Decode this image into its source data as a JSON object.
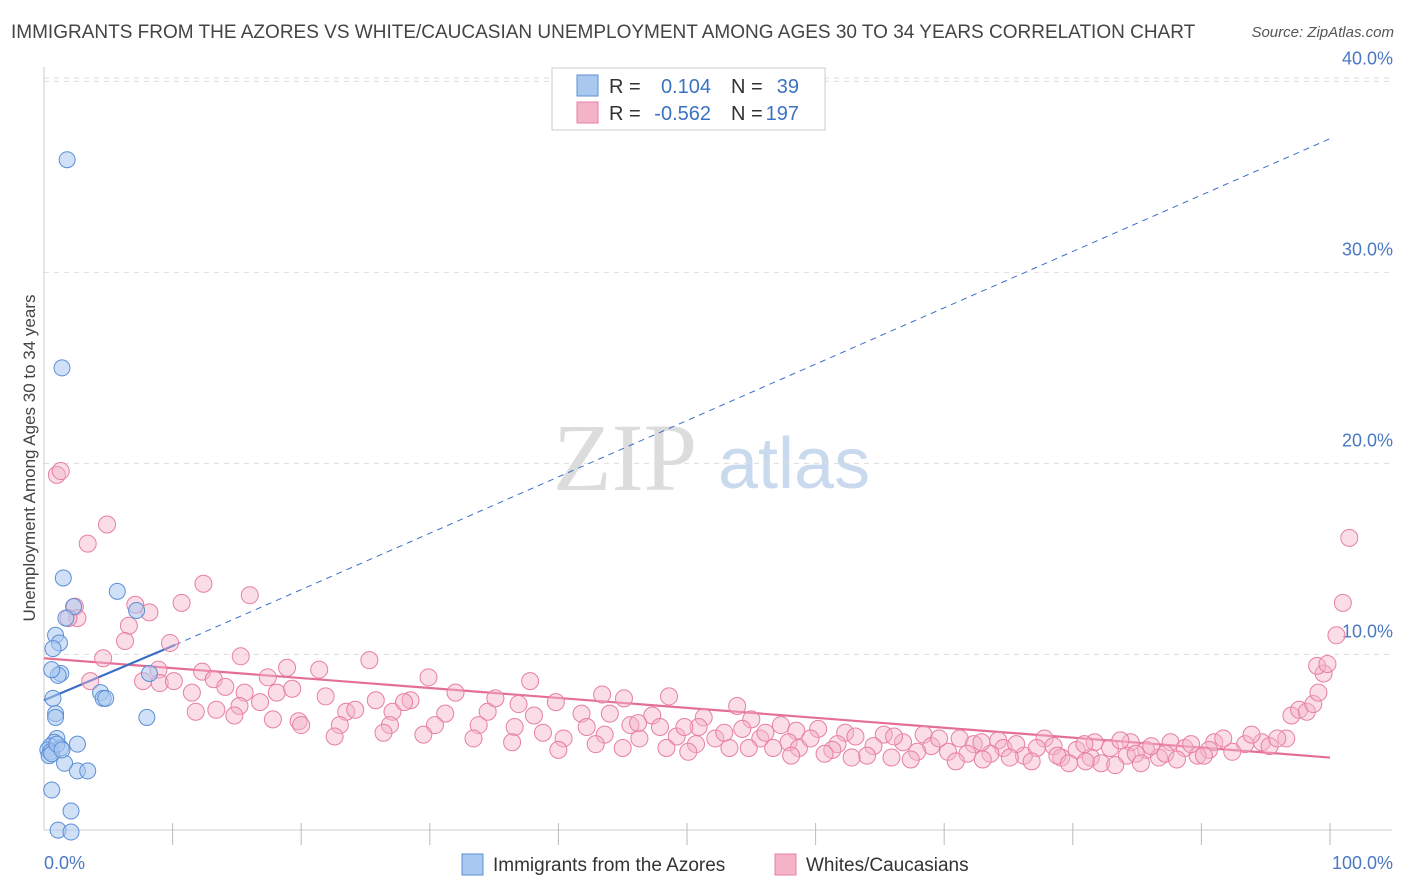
{
  "header": {
    "title": "IMMIGRANTS FROM THE AZORES VS WHITE/CAUCASIAN UNEMPLOYMENT AMONG AGES 30 TO 34 YEARS CORRELATION CHART",
    "source": "Source: ZipAtlas.com"
  },
  "watermark": {
    "zip": "ZIP",
    "atlas": "atlas"
  },
  "legend": {
    "rows": [
      {
        "r_label": "R =",
        "r_value": "0.104",
        "n_label": "N =",
        "n_value": "39",
        "color": "#a9c8f0"
      },
      {
        "r_label": "R =",
        "r_value": "-0.562",
        "n_label": "N =",
        "n_value": "197",
        "color": "#f5b3c8"
      }
    ]
  },
  "bottom_legend": [
    {
      "label": "Immigrants from the Azores",
      "color": "#a9c8f0"
    },
    {
      "label": "Whites/Caucasians",
      "color": "#f5b3c8"
    }
  ],
  "colors": {
    "blue_fill": "#a9c8f0",
    "blue_stroke": "#5b8fd6",
    "blue_line": "#3a6fc7",
    "pink_fill": "#f5b3c8",
    "pink_stroke": "#e87fa2",
    "pink_line": "#e46f96",
    "axis_text": "#4a78c2",
    "grid": "#dddddd"
  },
  "chart_data": {
    "type": "scatter",
    "title": "IMMIGRANTS FROM THE AZORES VS WHITE/CAUCASIAN UNEMPLOYMENT AMONG AGES 30 TO 34 YEARS CORRELATION CHART",
    "xlabel": "",
    "ylabel": "Unemployment Among Ages 30 to 34 years",
    "xlim": [
      0,
      100
    ],
    "ylim": [
      -0.5,
      42
    ],
    "x_tick_labels": [
      "0.0%",
      "100.0%"
    ],
    "y_ticks": [
      10,
      20,
      30,
      40
    ],
    "y_tick_labels": [
      "10.0%",
      "20.0%",
      "30.0%",
      "40.0%"
    ],
    "series": [
      {
        "name": "Immigrants from the Azores",
        "r": 0.104,
        "n": 39,
        "trend": {
          "x": [
            0,
            10.2
          ],
          "y": [
            7.6,
            10.5
          ]
        },
        "trend_dashed": {
          "x": [
            10.2,
            100
          ],
          "y": [
            10.5,
            37.0
          ]
        },
        "points": [
          [
            1.8,
            35.9
          ],
          [
            1.4,
            25.0
          ],
          [
            1.5,
            14.0
          ],
          [
            2.3,
            12.5
          ],
          [
            1.7,
            11.9
          ],
          [
            0.9,
            11.0
          ],
          [
            1.2,
            10.6
          ],
          [
            0.7,
            10.3
          ],
          [
            1.3,
            9.0
          ],
          [
            1.1,
            8.9
          ],
          [
            0.7,
            7.7
          ],
          [
            4.4,
            8.0
          ],
          [
            4.6,
            7.7
          ],
          [
            4.8,
            7.7
          ],
          [
            0.9,
            6.9
          ],
          [
            0.9,
            6.7
          ],
          [
            1.0,
            5.6
          ],
          [
            0.8,
            5.4
          ],
          [
            2.6,
            5.3
          ],
          [
            0.5,
            5.2
          ],
          [
            0.3,
            5.0
          ],
          [
            1.3,
            5.1
          ],
          [
            0.5,
            4.9
          ],
          [
            0.4,
            4.7
          ],
          [
            0.6,
            4.8
          ],
          [
            1.6,
            4.3
          ],
          [
            2.6,
            3.9
          ],
          [
            3.4,
            3.9
          ],
          [
            0.6,
            2.9
          ],
          [
            2.1,
            1.8
          ],
          [
            1.1,
            0.8
          ],
          [
            2.1,
            0.7
          ],
          [
            0.6,
            9.2
          ],
          [
            1.0,
            5.3
          ],
          [
            1.4,
            5.0
          ],
          [
            5.7,
            13.3
          ],
          [
            7.2,
            12.3
          ],
          [
            8.2,
            9.0
          ],
          [
            8.0,
            6.7
          ]
        ]
      },
      {
        "name": "Whites/Caucasians",
        "r": -0.562,
        "n": 197,
        "trend": {
          "x": [
            0,
            100
          ],
          "y": [
            9.8,
            4.6
          ]
        },
        "points": [
          [
            1.0,
            19.4
          ],
          [
            1.3,
            19.6
          ],
          [
            4.9,
            16.8
          ],
          [
            3.4,
            15.8
          ],
          [
            12.4,
            13.7
          ],
          [
            16.0,
            13.1
          ],
          [
            7.1,
            12.6
          ],
          [
            10.7,
            12.7
          ],
          [
            2.4,
            12.5
          ],
          [
            2.6,
            11.9
          ],
          [
            1.9,
            11.9
          ],
          [
            6.6,
            11.5
          ],
          [
            8.2,
            12.2
          ],
          [
            6.3,
            10.7
          ],
          [
            9.8,
            10.6
          ],
          [
            4.6,
            9.8
          ],
          [
            15.3,
            9.9
          ],
          [
            25.3,
            9.7
          ],
          [
            18.9,
            9.3
          ],
          [
            17.4,
            8.8
          ],
          [
            12.3,
            9.1
          ],
          [
            8.9,
            9.2
          ],
          [
            9.0,
            8.5
          ],
          [
            10.1,
            8.6
          ],
          [
            13.2,
            8.7
          ],
          [
            21.4,
            9.2
          ],
          [
            29.9,
            8.8
          ],
          [
            3.6,
            8.6
          ],
          [
            7.7,
            8.6
          ],
          [
            14.1,
            8.3
          ],
          [
            15.6,
            8.0
          ],
          [
            18.1,
            8.0
          ],
          [
            19.3,
            8.2
          ],
          [
            21.9,
            7.8
          ],
          [
            25.8,
            7.6
          ],
          [
            28.5,
            7.6
          ],
          [
            32.0,
            8.0
          ],
          [
            36.9,
            7.4
          ],
          [
            39.8,
            7.5
          ],
          [
            43.4,
            7.9
          ],
          [
            45.1,
            7.7
          ],
          [
            48.6,
            7.8
          ],
          [
            53.9,
            7.3
          ],
          [
            13.4,
            7.1
          ],
          [
            11.8,
            7.0
          ],
          [
            23.5,
            7.0
          ],
          [
            27.1,
            7.0
          ],
          [
            31.2,
            6.9
          ],
          [
            34.5,
            7.0
          ],
          [
            38.1,
            6.8
          ],
          [
            41.8,
            6.9
          ],
          [
            44.0,
            6.9
          ],
          [
            47.3,
            6.8
          ],
          [
            51.3,
            6.7
          ],
          [
            55.0,
            6.6
          ],
          [
            57.3,
            6.3
          ],
          [
            19.8,
            6.5
          ],
          [
            23.0,
            6.3
          ],
          [
            26.9,
            6.3
          ],
          [
            30.4,
            6.3
          ],
          [
            33.8,
            6.3
          ],
          [
            36.6,
            6.2
          ],
          [
            42.2,
            6.2
          ],
          [
            45.6,
            6.3
          ],
          [
            47.9,
            6.2
          ],
          [
            50.9,
            6.2
          ],
          [
            54.3,
            6.1
          ],
          [
            58.5,
            6.0
          ],
          [
            60.2,
            6.1
          ],
          [
            62.3,
            5.9
          ],
          [
            65.3,
            5.8
          ],
          [
            68.4,
            5.8
          ],
          [
            71.2,
            5.6
          ],
          [
            74.2,
            5.5
          ],
          [
            77.8,
            5.6
          ],
          [
            81.7,
            5.4
          ],
          [
            84.5,
            5.4
          ],
          [
            87.6,
            5.4
          ],
          [
            91.0,
            5.4
          ],
          [
            93.4,
            5.3
          ],
          [
            38.8,
            5.9
          ],
          [
            40.4,
            5.6
          ],
          [
            43.6,
            5.8
          ],
          [
            46.3,
            5.6
          ],
          [
            49.2,
            5.7
          ],
          [
            52.2,
            5.6
          ],
          [
            55.7,
            5.6
          ],
          [
            57.9,
            5.4
          ],
          [
            61.7,
            5.3
          ],
          [
            64.5,
            5.2
          ],
          [
            66.8,
            5.4
          ],
          [
            69.0,
            5.2
          ],
          [
            72.3,
            5.3
          ],
          [
            74.6,
            5.1
          ],
          [
            78.5,
            5.2
          ],
          [
            80.3,
            5.0
          ],
          [
            82.9,
            5.1
          ],
          [
            85.7,
            5.0
          ],
          [
            88.7,
            5.1
          ],
          [
            90.6,
            5.0
          ],
          [
            94.7,
            5.4
          ],
          [
            96.6,
            5.6
          ],
          [
            92.4,
            4.9
          ],
          [
            89.7,
            4.7
          ],
          [
            86.7,
            4.6
          ],
          [
            84.2,
            4.7
          ],
          [
            81.4,
            4.6
          ],
          [
            79.1,
            4.6
          ],
          [
            76.2,
            4.7
          ],
          [
            73.6,
            4.8
          ],
          [
            70.3,
            4.9
          ],
          [
            67.9,
            4.9
          ],
          [
            64.0,
            4.7
          ],
          [
            61.3,
            5.0
          ],
          [
            58.7,
            5.1
          ],
          [
            56.7,
            5.1
          ],
          [
            53.3,
            5.1
          ],
          [
            50.7,
            5.3
          ],
          [
            48.4,
            5.1
          ],
          [
            45.0,
            5.1
          ],
          [
            42.9,
            5.3
          ],
          [
            40.0,
            5.0
          ],
          [
            36.4,
            5.4
          ],
          [
            33.4,
            5.6
          ],
          [
            29.5,
            5.8
          ],
          [
            26.4,
            5.9
          ],
          [
            22.6,
            5.7
          ],
          [
            20.0,
            6.3
          ],
          [
            17.8,
            6.6
          ],
          [
            15.2,
            7.3
          ],
          [
            11.5,
            8.0
          ],
          [
            14.8,
            6.8
          ],
          [
            16.8,
            7.5
          ],
          [
            24.2,
            7.1
          ],
          [
            28.0,
            7.5
          ],
          [
            35.1,
            7.7
          ],
          [
            37.8,
            8.6
          ],
          [
            46.2,
            6.4
          ],
          [
            49.8,
            6.2
          ],
          [
            52.9,
            5.9
          ],
          [
            56.1,
            5.9
          ],
          [
            59.6,
            5.6
          ],
          [
            63.1,
            5.7
          ],
          [
            66.1,
            5.7
          ],
          [
            69.6,
            5.6
          ],
          [
            72.9,
            5.4
          ],
          [
            75.6,
            5.3
          ],
          [
            77.2,
            5.1
          ],
          [
            80.9,
            5.3
          ],
          [
            83.7,
            5.5
          ],
          [
            86.1,
            5.2
          ],
          [
            89.2,
            5.3
          ],
          [
            91.7,
            5.6
          ],
          [
            93.9,
            5.8
          ],
          [
            95.3,
            5.2
          ],
          [
            97.0,
            6.8
          ],
          [
            97.6,
            7.1
          ],
          [
            98.2,
            7.0
          ],
          [
            98.7,
            7.4
          ],
          [
            99.1,
            8.0
          ],
          [
            99.5,
            9.0
          ],
          [
            99.0,
            9.4
          ],
          [
            99.8,
            9.5
          ],
          [
            100.5,
            11.0
          ],
          [
            101.0,
            12.7
          ],
          [
            101.5,
            16.1
          ],
          [
            60.7,
            4.8
          ],
          [
            62.8,
            4.6
          ],
          [
            65.9,
            4.6
          ],
          [
            71.8,
            4.8
          ],
          [
            75.1,
            4.6
          ],
          [
            78.8,
            4.7
          ],
          [
            82.2,
            4.3
          ],
          [
            84.9,
            4.8
          ],
          [
            87.2,
            4.8
          ],
          [
            88.1,
            4.5
          ],
          [
            90.2,
            4.7
          ],
          [
            67.4,
            4.5
          ],
          [
            70.9,
            4.4
          ],
          [
            73.0,
            4.5
          ],
          [
            76.8,
            4.4
          ],
          [
            79.7,
            4.3
          ],
          [
            81.0,
            4.4
          ],
          [
            83.3,
            4.2
          ],
          [
            85.3,
            4.3
          ],
          [
            50.1,
            4.9
          ],
          [
            54.8,
            5.1
          ],
          [
            58.1,
            4.7
          ],
          [
            95.9,
            5.6
          ]
        ]
      }
    ]
  }
}
